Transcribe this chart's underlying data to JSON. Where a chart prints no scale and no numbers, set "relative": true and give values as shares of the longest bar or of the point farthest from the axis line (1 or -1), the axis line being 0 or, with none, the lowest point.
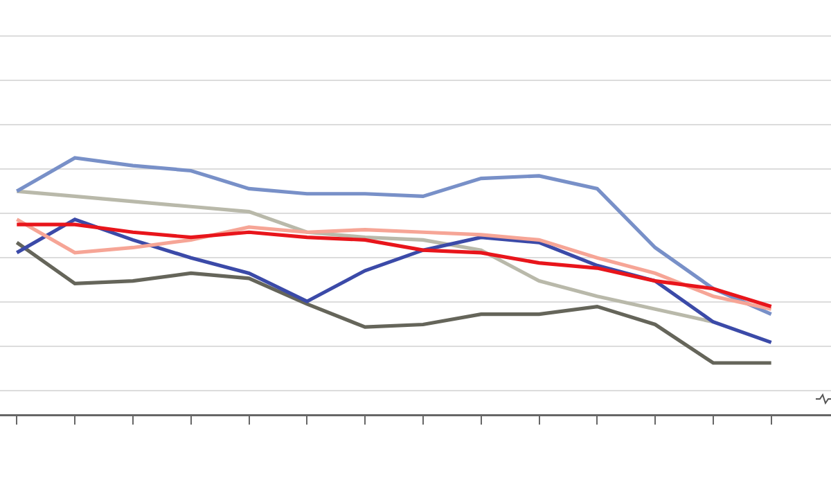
{
  "chart_data": {
    "type": "line",
    "relative": true,
    "grid": "y",
    "line_style": "solid",
    "marker": "none",
    "categories": [
      null,
      null,
      null,
      null,
      null,
      null,
      null,
      null,
      null,
      null,
      null,
      null,
      null,
      null
    ],
    "series": [
      {
        "color": "#b9b9aa",
        "values": [
          0.87,
          0.85,
          0.83,
          0.81,
          0.79,
          0.71,
          0.69,
          0.68,
          0.64,
          0.52,
          0.46,
          0.41,
          0.36,
          null
        ]
      },
      {
        "color": "#7890c8",
        "values": [
          0.87,
          1,
          0.97,
          0.95,
          0.88,
          0.86,
          0.86,
          0.85,
          0.92,
          0.93,
          0.88,
          0.65,
          0.49,
          0.39
        ]
      },
      {
        "color": "#65655a",
        "values": [
          0.67,
          0.51,
          0.52,
          0.55,
          0.53,
          0.43,
          0.34,
          0.35,
          0.39,
          0.39,
          0.42,
          0.35,
          0.2,
          0.2
        ]
      },
      {
        "color": "#3b4aa8",
        "values": [
          0.63,
          0.76,
          0.68,
          0.61,
          0.55,
          0.44,
          0.56,
          0.64,
          0.69,
          0.67,
          0.58,
          0.52,
          0.36,
          0.28
        ]
      },
      {
        "color": "#f6a596",
        "values": [
          0.76,
          0.63,
          0.65,
          0.68,
          0.73,
          0.71,
          0.72,
          0.71,
          0.7,
          0.68,
          0.61,
          0.55,
          0.46,
          0.41
        ]
      },
      {
        "color": "#e8151b",
        "values": [
          0.74,
          0.74,
          0.71,
          0.69,
          0.71,
          0.69,
          0.68,
          0.64,
          0.63,
          0.59,
          0.57,
          0.52,
          0.49,
          0.42
        ]
      }
    ]
  }
}
